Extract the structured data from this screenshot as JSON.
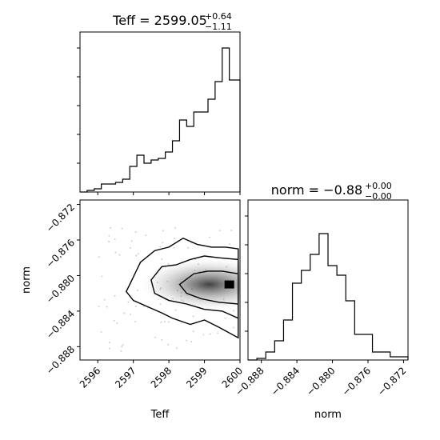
{
  "chart_data": [
    {
      "type": "histogram",
      "panel": "top-left",
      "title": {
        "param": "Teff",
        "value": "2599.05",
        "upper": "+0.64",
        "lower": "−1.11"
      },
      "xlim": [
        2595.5,
        2600
      ],
      "ylim": [
        0,
        1.0
      ],
      "x_tick_labels": [],
      "y_tick_labels": [],
      "bins_x": [
        2595.5,
        2595.7,
        2595.9,
        2596.1,
        2596.3,
        2596.5,
        2596.7,
        2596.9,
        2597.1,
        2597.3,
        2597.5,
        2597.7,
        2597.9,
        2598.1,
        2598.3,
        2598.5,
        2598.7,
        2598.9,
        2599.1,
        2599.3,
        2599.5,
        2599.7,
        2599.9,
        2600.0
      ],
      "counts": [
        0.0,
        0.01,
        0.02,
        0.05,
        0.05,
        0.06,
        0.08,
        0.16,
        0.23,
        0.18,
        0.2,
        0.21,
        0.25,
        0.32,
        0.45,
        0.41,
        0.5,
        0.5,
        0.58,
        0.69,
        0.9,
        0.7,
        0.7
      ]
    },
    {
      "type": "histogram",
      "panel": "bottom-right",
      "title": {
        "param": "norm",
        "value": "−0.88",
        "upper": "+0.00",
        "lower": "−0.00"
      },
      "xlabel": "norm",
      "xlim": [
        -0.8895,
        -0.8715
      ],
      "ylim": [
        0,
        1.0
      ],
      "x_tick_values": [
        -0.888,
        -0.884,
        -0.88,
        -0.876,
        -0.872
      ],
      "x_tick_labels": [
        "−0.888",
        "−0.884",
        "−0.880",
        "−0.876",
        "−0.872"
      ],
      "y_tick_labels": [],
      "bins_x": [
        -0.8895,
        -0.8885,
        -0.8875,
        -0.8865,
        -0.8855,
        -0.8845,
        -0.8835,
        -0.8825,
        -0.8815,
        -0.8805,
        -0.8795,
        -0.8785,
        -0.8775,
        -0.8765,
        -0.8755,
        -0.8745,
        -0.8735,
        -0.8725,
        -0.8715
      ],
      "counts": [
        0.0,
        0.01,
        0.05,
        0.12,
        0.25,
        0.48,
        0.56,
        0.66,
        0.79,
        0.59,
        0.53,
        0.37,
        0.16,
        0.16,
        0.05,
        0.05,
        0.02,
        0.02
      ]
    },
    {
      "type": "contour",
      "panel": "bottom-left",
      "xlabel": "Teff",
      "ylabel": "norm",
      "xlim": [
        2595.5,
        2600
      ],
      "ylim": [
        -0.8895,
        -0.8715
      ],
      "x_tick_values": [
        2596,
        2597,
        2598,
        2599,
        2600
      ],
      "x_tick_labels": [
        "2596",
        "2597",
        "2598",
        "2599",
        "2600"
      ],
      "y_tick_values": [
        -0.872,
        -0.876,
        -0.88,
        -0.884,
        -0.888
      ],
      "y_tick_labels": [
        "−0.872",
        "−0.876",
        "−0.880",
        "−0.884",
        "−0.888"
      ],
      "density_peak": [
        2599.7,
        -0.881
      ],
      "contours": [
        [
          [
            2596.9,
            -0.881
          ],
          [
            2597.2,
            -0.8785
          ],
          [
            2597.6,
            -0.8772
          ],
          [
            2598.0,
            -0.8768
          ],
          [
            2598.4,
            -0.8758
          ],
          [
            2598.8,
            -0.8765
          ],
          [
            2599.2,
            -0.8768
          ],
          [
            2599.6,
            -0.8768
          ],
          [
            2599.95,
            -0.877
          ],
          [
            2599.95,
            -0.887
          ],
          [
            2599.4,
            -0.8858
          ],
          [
            2599.0,
            -0.885
          ],
          [
            2598.6,
            -0.8855
          ],
          [
            2598.1,
            -0.8848
          ],
          [
            2597.8,
            -0.8842
          ],
          [
            2597.4,
            -0.8835
          ],
          [
            2597.0,
            -0.8828
          ],
          [
            2596.8,
            -0.8818
          ]
        ],
        [
          [
            2597.5,
            -0.8805
          ],
          [
            2597.8,
            -0.879
          ],
          [
            2598.2,
            -0.8788
          ],
          [
            2598.6,
            -0.8782
          ],
          [
            2599.0,
            -0.8778
          ],
          [
            2599.4,
            -0.878
          ],
          [
            2599.95,
            -0.8782
          ],
          [
            2599.95,
            -0.8848
          ],
          [
            2599.5,
            -0.884
          ],
          [
            2599.0,
            -0.8838
          ],
          [
            2598.5,
            -0.8832
          ],
          [
            2598.0,
            -0.8828
          ],
          [
            2597.6,
            -0.882
          ]
        ],
        [
          [
            2598.3,
            -0.881
          ],
          [
            2598.7,
            -0.8798
          ],
          [
            2599.1,
            -0.8795
          ],
          [
            2599.5,
            -0.8795
          ],
          [
            2599.95,
            -0.8798
          ],
          [
            2599.95,
            -0.8832
          ],
          [
            2599.4,
            -0.883
          ],
          [
            2598.9,
            -0.8826
          ],
          [
            2598.5,
            -0.882
          ]
        ]
      ]
    }
  ]
}
